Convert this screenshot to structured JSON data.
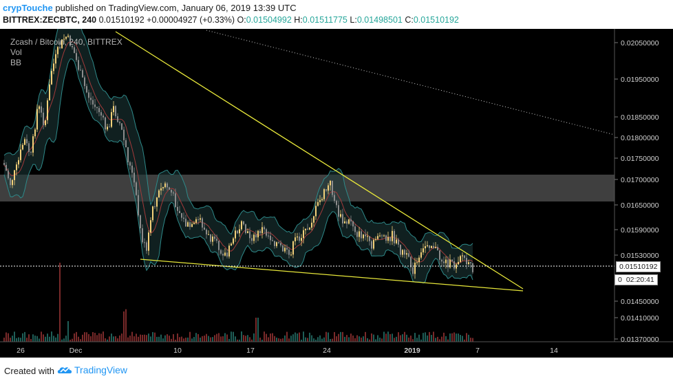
{
  "header": {
    "author": "crypTouche",
    "published": "published on TradingView.com, January 06, 2019 13:39 UTC",
    "symbol_line": "BITTREX:ZECBTC, 240",
    "last": "0.01510192",
    "change": "+0.00004927 (+0.33%)",
    "o_label": "O:",
    "o_value": "0.01504992",
    "h_label": "H:",
    "h_value": "0.01511775",
    "l_label": "L:",
    "l_value": "0.01498501",
    "c_label": "C:",
    "c_value": "0.01510192"
  },
  "legend": {
    "title": "Zcash / Bitcoin, 240, BITTREX",
    "vol": "Vol",
    "bb": "BB"
  },
  "price_axis": [
    "0.02050000",
    "0.01950000",
    "0.01850000",
    "0.01800000",
    "0.01750000",
    "0.01700000",
    "0.01650000",
    "0.01590000",
    "0.01530000",
    "0.01450000",
    "0.01410000",
    "0.01370000"
  ],
  "price_tag": "0.01510192",
  "price_tag_prefix": "0",
  "countdown": "02:20:41",
  "time_axis": [
    "26",
    "Dec",
    "10",
    "17",
    "24",
    "2019",
    "7",
    "14"
  ],
  "footer": {
    "created_with": "Created with",
    "brand": "TradingView"
  },
  "colors": {
    "up": "#f5d27a",
    "down": "#8c8c8c",
    "trendline": "#e8e83a",
    "bb_band": "#2e8a8a",
    "bb_basis": "#a33a3a",
    "zone": "#5a5a5a",
    "vol_up": "#1f5f58",
    "vol_down": "#7a2a2a"
  }
}
